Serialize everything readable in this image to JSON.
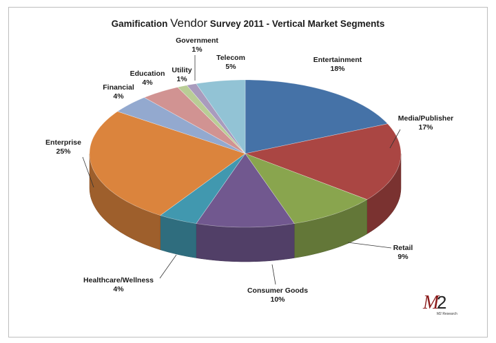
{
  "chart_data": {
    "type": "pie",
    "title_parts": [
      "Gamification",
      "Vendor",
      "Survey 2011 - Vertical Market Segments"
    ],
    "style": "3d",
    "start": "top, clockwise",
    "slices": [
      {
        "label": "Entertainment",
        "value": 18,
        "pct": "18%",
        "color": "#4572a7"
      },
      {
        "label": "Media/Publisher",
        "value": 17,
        "pct": "17%",
        "color": "#aa4643"
      },
      {
        "label": "Retail",
        "value": 9,
        "pct": "9%",
        "color": "#89a54e"
      },
      {
        "label": "Consumer Goods",
        "value": 10,
        "pct": "10%",
        "color": "#71588f"
      },
      {
        "label": "Healthcare/Wellness",
        "value": 4,
        "pct": "4%",
        "color": "#4198af"
      },
      {
        "label": "Enterprise",
        "value": 25,
        "pct": "25%",
        "color": "#db843d"
      },
      {
        "label": "Financial",
        "value": 4,
        "pct": "4%",
        "color": "#93a9cf"
      },
      {
        "label": "Education",
        "value": 4,
        "pct": "4%",
        "color": "#d19392"
      },
      {
        "label": "Utility",
        "value": 1,
        "pct": "1%",
        "color": "#b9cd96"
      },
      {
        "label": "Government",
        "value": 1,
        "pct": "1%",
        "color": "#a99bbd"
      },
      {
        "label": "Telecom",
        "value": 5,
        "pct": "5%",
        "color": "#92c3d5"
      }
    ]
  },
  "logo": {
    "mark": "M2",
    "sub": "M2 Research"
  }
}
